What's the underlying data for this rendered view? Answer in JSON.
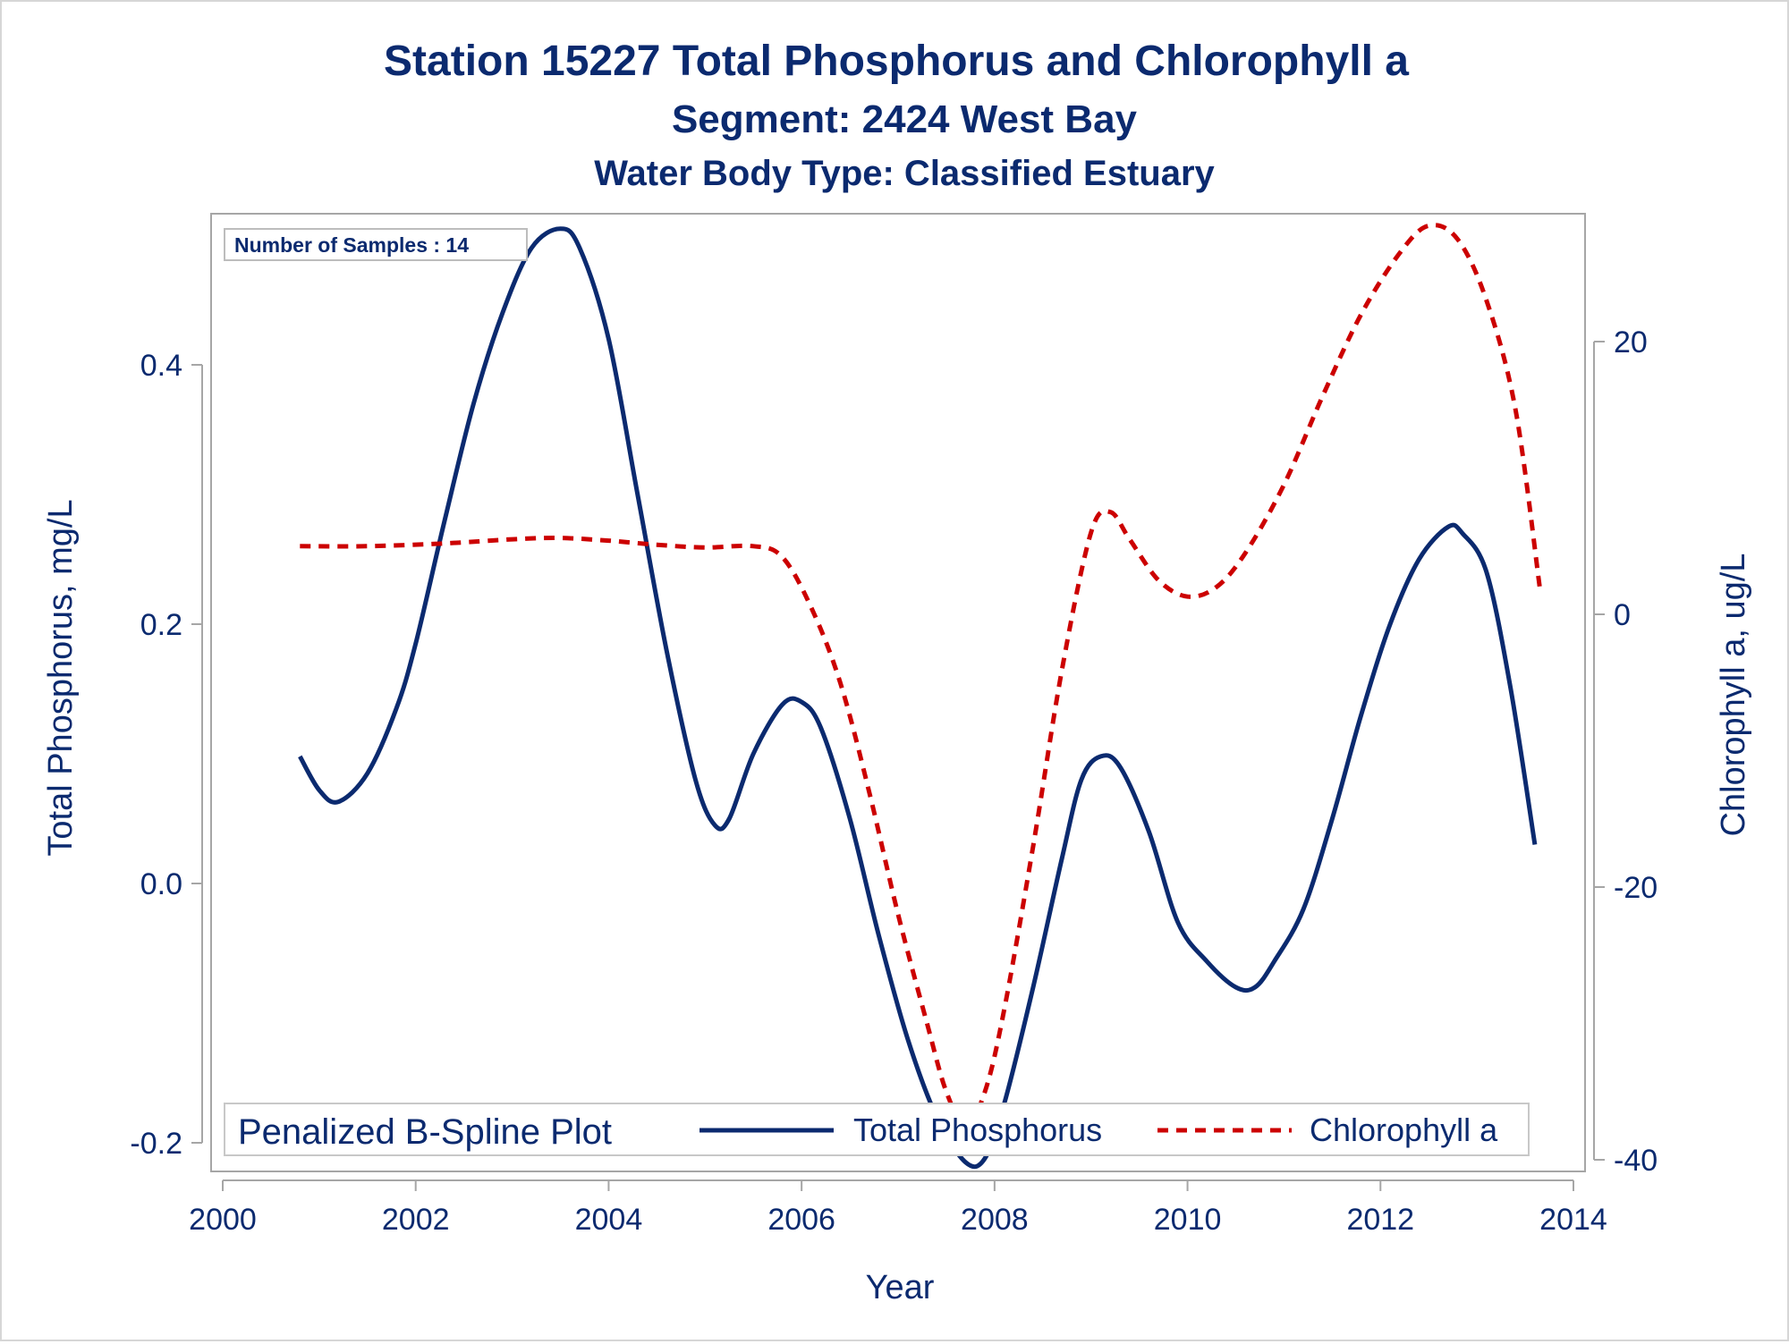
{
  "colors": {
    "text": "#0b2a6f",
    "frame": "#a6a6a6",
    "phosphorus": "#0b2a6f",
    "chlorophyll": "#cc0000"
  },
  "chart_data": {
    "type": "line",
    "title": "Station 15227  Total Phosphorus and Chlorophyll a",
    "subtitle": "Segment: 2424  West Bay",
    "subtitle2": "Water Body Type: Classified Estuary",
    "xlabel": "Year",
    "ylabel_left": "Total Phosphorus, mg/L",
    "ylabel_right": "Chlorophyll a, ug/L",
    "xlim": [
      2000,
      2014
    ],
    "ylim_left": [
      -0.2,
      0.52
    ],
    "ylim_right": [
      -40,
      29
    ],
    "x_ticks": [
      "2000",
      "2002",
      "2004",
      "2006",
      "2008",
      "2010",
      "2012",
      "2014"
    ],
    "y_left_ticks": [
      "-0.2",
      "0.0",
      "0.2",
      "0.4"
    ],
    "y_right_ticks": [
      "-40",
      "-20",
      "0",
      "20"
    ],
    "inset_label": "Number of Samples : 14",
    "legend": {
      "title": "Penalized B-Spline Plot",
      "placement": "bottom-inside",
      "entries": [
        "Total Phosphorus",
        "Chlorophyll a"
      ]
    },
    "series": [
      {
        "name": "Total Phosphorus",
        "axis": "left",
        "style": "solid",
        "x": [
          2000.8,
          2001.0,
          2001.2,
          2001.5,
          2001.8,
          2002.0,
          2002.3,
          2002.6,
          2002.9,
          2003.2,
          2003.5,
          2003.7,
          2004.0,
          2004.3,
          2004.6,
          2004.9,
          2005.1,
          2005.25,
          2005.5,
          2005.8,
          2006.0,
          2006.2,
          2006.5,
          2006.8,
          2007.1,
          2007.4,
          2007.7,
          2007.9,
          2008.1,
          2008.4,
          2008.7,
          2008.9,
          2009.1,
          2009.3,
          2009.6,
          2009.9,
          2010.2,
          2010.5,
          2010.7,
          2010.9,
          2011.2,
          2011.5,
          2011.8,
          2012.1,
          2012.4,
          2012.7,
          2012.85,
          2013.1,
          2013.35,
          2013.6
        ],
        "values": [
          0.098,
          0.072,
          0.063,
          0.085,
          0.135,
          0.185,
          0.28,
          0.37,
          0.44,
          0.49,
          0.505,
          0.49,
          0.42,
          0.3,
          0.18,
          0.08,
          0.045,
          0.05,
          0.1,
          0.138,
          0.14,
          0.12,
          0.05,
          -0.04,
          -0.12,
          -0.18,
          -0.215,
          -0.212,
          -0.17,
          -0.08,
          0.02,
          0.08,
          0.098,
          0.09,
          0.04,
          -0.03,
          -0.06,
          -0.08,
          -0.08,
          -0.06,
          -0.02,
          0.05,
          0.13,
          0.2,
          0.25,
          0.275,
          0.27,
          0.24,
          0.15,
          0.03
        ]
      },
      {
        "name": "Chlorophyll a",
        "axis": "right",
        "style": "dashed",
        "x": [
          2000.8,
          2001.5,
          2002.3,
          2003.0,
          2003.5,
          2004.0,
          2004.5,
          2005.0,
          2005.5,
          2005.8,
          2006.1,
          2006.4,
          2006.7,
          2007.0,
          2007.3,
          2007.5,
          2007.7,
          2007.9,
          2008.1,
          2008.4,
          2008.7,
          2009.0,
          2009.2,
          2009.4,
          2009.7,
          2010.0,
          2010.3,
          2010.6,
          2011.0,
          2011.4,
          2011.8,
          2012.2,
          2012.5,
          2012.8,
          2013.1,
          2013.4,
          2013.65
        ],
        "values": [
          5,
          5,
          5.2,
          5.5,
          5.6,
          5.4,
          5.1,
          4.9,
          5.0,
          4.2,
          0.5,
          -5,
          -13,
          -22,
          -30,
          -35,
          -37.5,
          -35,
          -29,
          -17,
          -4,
          6,
          7.5,
          5.5,
          2.5,
          1.3,
          2.0,
          4.5,
          9.5,
          16,
          22,
          26.5,
          28.5,
          27.5,
          23,
          15,
          2
        ]
      }
    ]
  }
}
